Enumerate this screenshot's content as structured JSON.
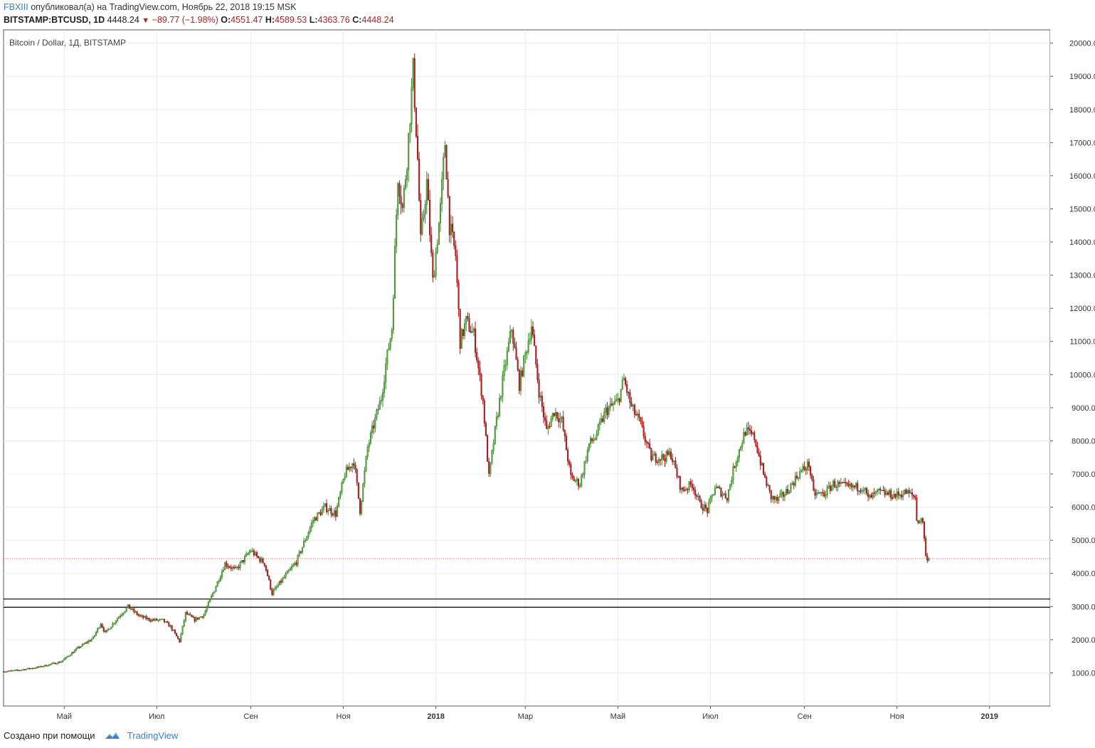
{
  "header": {
    "author": "FBXIII",
    "published_text": "опубликовал(а) на TradingView.com, Ноябрь 22, 2018 19:15 MSK",
    "symbol": "BITSTAMP:BTCUSD, 1D",
    "last": "4448.24",
    "change": "−89.77 (−1.98%)",
    "open_label": "O:",
    "open": "4551.47",
    "high_label": "H:",
    "high": "4589.53",
    "low_label": "L:",
    "low": "4363.76",
    "close_label": "C:",
    "close": "4448.24"
  },
  "footer": {
    "created_with": "Создано при помощи",
    "brand": "TradingView"
  },
  "chart_data": {
    "type": "candlestick",
    "title": "Bitcoin / Dollar, 1Д, BITSTAMP",
    "ylim": [
      0,
      20400
    ],
    "y_ticks": [
      1000,
      2000,
      3000,
      4000,
      5000,
      6000,
      7000,
      8000,
      9000,
      10000,
      11000,
      12000,
      13000,
      14000,
      15000,
      16000,
      17000,
      18000,
      19000,
      20000
    ],
    "y_tick_labels": [
      "1000.00",
      "2000.00",
      "3000.00",
      "4000.00",
      "5000.00",
      "6000.00",
      "7000.00",
      "8000.00",
      "9000.00",
      "10000.00",
      "11000.00",
      "12000.00",
      "13000.00",
      "14000.00",
      "15000.00",
      "16000.00",
      "17000.00",
      "18000.00",
      "19000.00",
      "20000.00"
    ],
    "x_start": "2017-03-22",
    "x_end": "2019-02-10",
    "x_ticks": [
      {
        "label": "Май",
        "date": "2017-05-01"
      },
      {
        "label": "Июл",
        "date": "2017-07-01"
      },
      {
        "label": "Сен",
        "date": "2017-09-01"
      },
      {
        "label": "Ноя",
        "date": "2017-11-01"
      },
      {
        "label": "2018",
        "date": "2018-01-01",
        "bold": true
      },
      {
        "label": "Мар",
        "date": "2018-03-01"
      },
      {
        "label": "Май",
        "date": "2018-05-01"
      },
      {
        "label": "Июл",
        "date": "2018-07-01"
      },
      {
        "label": "Сен",
        "date": "2018-09-01"
      },
      {
        "label": "Ноя",
        "date": "2018-11-01"
      },
      {
        "label": "2019",
        "date": "2019-01-01",
        "bold": true
      }
    ],
    "horizontal_lines": [
      {
        "value": 3227.79,
        "label": "3227.79"
      },
      {
        "value": 2980.0,
        "label": "2980.00"
      }
    ],
    "last_price": {
      "value": 4448.24,
      "label": "4448.24"
    },
    "up_color": "#3b8a2e",
    "down_color": "#9b1b1b",
    "up_body_color": "#6aa84f",
    "down_body_color": "#b32424",
    "last_price_color": "#e8553d",
    "close_series": [
      {
        "date": "2017-03-22",
        "close": 1040
      },
      {
        "date": "2017-04-01",
        "close": 1080
      },
      {
        "date": "2017-04-15",
        "close": 1180
      },
      {
        "date": "2017-04-29",
        "close": 1340
      },
      {
        "date": "2017-05-10",
        "close": 1750
      },
      {
        "date": "2017-05-20",
        "close": 2050
      },
      {
        "date": "2017-05-25",
        "close": 2500
      },
      {
        "date": "2017-05-28",
        "close": 2200
      },
      {
        "date": "2017-06-06",
        "close": 2700
      },
      {
        "date": "2017-06-12",
        "close": 3000
      },
      {
        "date": "2017-06-20",
        "close": 2700
      },
      {
        "date": "2017-06-27",
        "close": 2600
      },
      {
        "date": "2017-07-05",
        "close": 2580
      },
      {
        "date": "2017-07-10",
        "close": 2400
      },
      {
        "date": "2017-07-16",
        "close": 1950
      },
      {
        "date": "2017-07-20",
        "close": 2800
      },
      {
        "date": "2017-07-26",
        "close": 2600
      },
      {
        "date": "2017-08-01",
        "close": 2750
      },
      {
        "date": "2017-08-07",
        "close": 3400
      },
      {
        "date": "2017-08-15",
        "close": 4300
      },
      {
        "date": "2017-08-22",
        "close": 4100
      },
      {
        "date": "2017-09-01",
        "close": 4700
      },
      {
        "date": "2017-09-05",
        "close": 4500
      },
      {
        "date": "2017-09-10",
        "close": 4300
      },
      {
        "date": "2017-09-15",
        "close": 3400
      },
      {
        "date": "2017-09-20",
        "close": 3700
      },
      {
        "date": "2017-10-01",
        "close": 4350
      },
      {
        "date": "2017-10-12",
        "close": 5600
      },
      {
        "date": "2017-10-20",
        "close": 6000
      },
      {
        "date": "2017-10-27",
        "close": 5800
      },
      {
        "date": "2017-11-02",
        "close": 7000
      },
      {
        "date": "2017-11-08",
        "close": 7400
      },
      {
        "date": "2017-11-12",
        "close": 5900
      },
      {
        "date": "2017-11-17",
        "close": 7800
      },
      {
        "date": "2017-11-26",
        "close": 9300
      },
      {
        "date": "2017-11-29",
        "close": 10300
      },
      {
        "date": "2017-12-03",
        "close": 11400
      },
      {
        "date": "2017-12-07",
        "close": 16000
      },
      {
        "date": "2017-12-10",
        "close": 15000
      },
      {
        "date": "2017-12-13",
        "close": 16500
      },
      {
        "date": "2017-12-17",
        "close": 19200
      },
      {
        "date": "2017-12-20",
        "close": 16500
      },
      {
        "date": "2017-12-22",
        "close": 14000
      },
      {
        "date": "2017-12-26",
        "close": 15800
      },
      {
        "date": "2017-12-30",
        "close": 12800
      },
      {
        "date": "2018-01-04",
        "close": 15000
      },
      {
        "date": "2018-01-07",
        "close": 17000
      },
      {
        "date": "2018-01-10",
        "close": 14500
      },
      {
        "date": "2018-01-14",
        "close": 13600
      },
      {
        "date": "2018-01-17",
        "close": 11000
      },
      {
        "date": "2018-01-21",
        "close": 11600
      },
      {
        "date": "2018-01-26",
        "close": 11200
      },
      {
        "date": "2018-02-01",
        "close": 9200
      },
      {
        "date": "2018-02-05",
        "close": 6900
      },
      {
        "date": "2018-02-09",
        "close": 8300
      },
      {
        "date": "2018-02-15",
        "close": 10100
      },
      {
        "date": "2018-02-20",
        "close": 11400
      },
      {
        "date": "2018-02-25",
        "close": 9700
      },
      {
        "date": "2018-03-05",
        "close": 11500
      },
      {
        "date": "2018-03-10",
        "close": 9500
      },
      {
        "date": "2018-03-15",
        "close": 8300
      },
      {
        "date": "2018-03-20",
        "close": 8900
      },
      {
        "date": "2018-03-25",
        "close": 8600
      },
      {
        "date": "2018-03-31",
        "close": 6900
      },
      {
        "date": "2018-04-06",
        "close": 6700
      },
      {
        "date": "2018-04-12",
        "close": 7900
      },
      {
        "date": "2018-04-16",
        "close": 8100
      },
      {
        "date": "2018-04-23",
        "close": 8900
      },
      {
        "date": "2018-05-01",
        "close": 9200
      },
      {
        "date": "2018-05-05",
        "close": 9850
      },
      {
        "date": "2018-05-10",
        "close": 9000
      },
      {
        "date": "2018-05-15",
        "close": 8600
      },
      {
        "date": "2018-05-23",
        "close": 7500
      },
      {
        "date": "2018-05-31",
        "close": 7500
      },
      {
        "date": "2018-06-05",
        "close": 7600
      },
      {
        "date": "2018-06-12",
        "close": 6500
      },
      {
        "date": "2018-06-19",
        "close": 6700
      },
      {
        "date": "2018-06-24",
        "close": 6100
      },
      {
        "date": "2018-06-29",
        "close": 5900
      },
      {
        "date": "2018-07-04",
        "close": 6600
      },
      {
        "date": "2018-07-12",
        "close": 6300
      },
      {
        "date": "2018-07-17",
        "close": 7300
      },
      {
        "date": "2018-07-24",
        "close": 8300
      },
      {
        "date": "2018-07-30",
        "close": 8100
      },
      {
        "date": "2018-08-05",
        "close": 7000
      },
      {
        "date": "2018-08-10",
        "close": 6300
      },
      {
        "date": "2018-08-14",
        "close": 6200
      },
      {
        "date": "2018-08-21",
        "close": 6500
      },
      {
        "date": "2018-08-28",
        "close": 7000
      },
      {
        "date": "2018-09-04",
        "close": 7300
      },
      {
        "date": "2018-09-07",
        "close": 6400
      },
      {
        "date": "2018-09-14",
        "close": 6400
      },
      {
        "date": "2018-09-20",
        "close": 6700
      },
      {
        "date": "2018-09-30",
        "close": 6600
      },
      {
        "date": "2018-10-10",
        "close": 6600
      },
      {
        "date": "2018-10-13",
        "close": 6250
      },
      {
        "date": "2018-10-20",
        "close": 6450
      },
      {
        "date": "2018-10-31",
        "close": 6350
      },
      {
        "date": "2018-11-07",
        "close": 6450
      },
      {
        "date": "2018-11-13",
        "close": 6300
      },
      {
        "date": "2018-11-14",
        "close": 5600
      },
      {
        "date": "2018-11-18",
        "close": 5600
      },
      {
        "date": "2018-11-20",
        "close": 4500
      },
      {
        "date": "2018-11-22",
        "close": 4448
      }
    ]
  }
}
